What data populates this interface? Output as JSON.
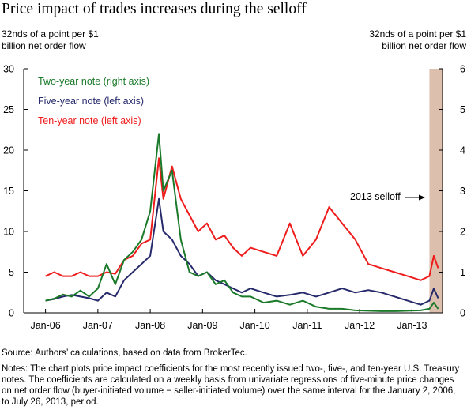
{
  "title": "Price impact of trades increases during the selloff",
  "left_axis_title": "32nds of a point per $1 billion net order flow",
  "right_axis_title": "32nds of a point per $1 billion net order flow",
  "source": "Source: Authors’ calculations, based on data from BrokerTec.",
  "notes": "Notes: The chart plots price impact coefficients for the most recently issued two-, five-, and ten-year U.S. Treasury notes. The coefficients are calculated on a weekly basis from univariate regressions of five-minute price changes on net order flow (buyer-initiated volume − seller-initiated volume) over the same interval for the January 2, 2006, to July 26, 2013, period.",
  "colors": {
    "two_year": "#1b7a2a",
    "five_year": "#262a6b",
    "ten_year": "#ee1c1c",
    "selloff_shade": "#ddbfae",
    "axis": "#000000"
  },
  "chart_data": {
    "type": "line",
    "x_tick_labels": [
      "Jan-06",
      "Jan-07",
      "Jan-08",
      "Jan-09",
      "Jan-10",
      "Jan-11",
      "Jan-12",
      "Jan-13"
    ],
    "x_range": [
      "2005-08",
      "2013-08"
    ],
    "left_axis": {
      "min": 0,
      "max": 30,
      "ticks": [
        0,
        5,
        10,
        15,
        20,
        25,
        30
      ]
    },
    "right_axis": {
      "min": 0,
      "max": 6,
      "ticks": [
        0,
        1,
        2,
        3,
        4,
        5,
        6
      ]
    },
    "grid": false,
    "legend_position": "top-left",
    "shaded_region": {
      "start": "2013-05",
      "end": "2013-08"
    },
    "annotation": {
      "text": "2013 selloff",
      "arrow": "right"
    },
    "series": [
      {
        "name": "Two-year note (right axis)",
        "axis": "right",
        "color": "#1b7a2a",
        "points": [
          [
            "2006-01",
            0.3
          ],
          [
            "2006-03",
            0.35
          ],
          [
            "2006-05",
            0.45
          ],
          [
            "2006-07",
            0.4
          ],
          [
            "2006-09",
            0.55
          ],
          [
            "2006-11",
            0.4
          ],
          [
            "2007-01",
            0.6
          ],
          [
            "2007-03",
            1.2
          ],
          [
            "2007-05",
            0.7
          ],
          [
            "2007-07",
            1.3
          ],
          [
            "2007-09",
            1.5
          ],
          [
            "2007-11",
            1.8
          ],
          [
            "2008-01",
            2.5
          ],
          [
            "2008-03",
            4.4
          ],
          [
            "2008-04",
            3.0
          ],
          [
            "2008-06",
            3.5
          ],
          [
            "2008-08",
            1.8
          ],
          [
            "2008-10",
            1.0
          ],
          [
            "2008-12",
            0.9
          ],
          [
            "2009-02",
            1.0
          ],
          [
            "2009-04",
            0.7
          ],
          [
            "2009-06",
            0.8
          ],
          [
            "2009-08",
            0.5
          ],
          [
            "2009-10",
            0.4
          ],
          [
            "2009-12",
            0.4
          ],
          [
            "2010-03",
            0.25
          ],
          [
            "2010-06",
            0.3
          ],
          [
            "2010-09",
            0.2
          ],
          [
            "2010-12",
            0.3
          ],
          [
            "2011-03",
            0.15
          ],
          [
            "2011-06",
            0.1
          ],
          [
            "2011-09",
            0.1
          ],
          [
            "2011-12",
            0.06
          ],
          [
            "2012-03",
            0.05
          ],
          [
            "2012-06",
            0.04
          ],
          [
            "2012-09",
            0.04
          ],
          [
            "2012-12",
            0.05
          ],
          [
            "2013-03",
            0.06
          ],
          [
            "2013-05",
            0.1
          ],
          [
            "2013-06",
            0.25
          ],
          [
            "2013-07",
            0.1
          ]
        ]
      },
      {
        "name": "Five-year note (left axis)",
        "axis": "left",
        "color": "#262a6b",
        "points": [
          [
            "2006-01",
            1.5
          ],
          [
            "2006-03",
            1.7
          ],
          [
            "2006-05",
            2.0
          ],
          [
            "2006-07",
            2.2
          ],
          [
            "2006-09",
            2.0
          ],
          [
            "2006-11",
            1.8
          ],
          [
            "2007-01",
            1.5
          ],
          [
            "2007-03",
            2.5
          ],
          [
            "2007-05",
            2.0
          ],
          [
            "2007-07",
            4.0
          ],
          [
            "2007-09",
            5.0
          ],
          [
            "2007-11",
            6.0
          ],
          [
            "2008-01",
            7.0
          ],
          [
            "2008-03",
            14.0
          ],
          [
            "2008-04",
            10.0
          ],
          [
            "2008-06",
            9.0
          ],
          [
            "2008-08",
            7.0
          ],
          [
            "2008-10",
            6.0
          ],
          [
            "2008-12",
            4.5
          ],
          [
            "2009-02",
            5.0
          ],
          [
            "2009-04",
            4.0
          ],
          [
            "2009-06",
            3.5
          ],
          [
            "2009-08",
            3.0
          ],
          [
            "2009-10",
            2.5
          ],
          [
            "2009-12",
            3.0
          ],
          [
            "2010-03",
            2.5
          ],
          [
            "2010-06",
            2.0
          ],
          [
            "2010-09",
            2.2
          ],
          [
            "2010-12",
            2.5
          ],
          [
            "2011-03",
            2.0
          ],
          [
            "2011-06",
            2.5
          ],
          [
            "2011-09",
            3.0
          ],
          [
            "2011-12",
            2.5
          ],
          [
            "2012-03",
            2.8
          ],
          [
            "2012-06",
            2.5
          ],
          [
            "2012-09",
            2.0
          ],
          [
            "2012-12",
            1.5
          ],
          [
            "2013-03",
            1.0
          ],
          [
            "2013-05",
            1.5
          ],
          [
            "2013-06",
            3.0
          ],
          [
            "2013-07",
            1.8
          ]
        ]
      },
      {
        "name": "Ten-year note (left axis)",
        "axis": "left",
        "color": "#ee1c1c",
        "points": [
          [
            "2006-01",
            4.5
          ],
          [
            "2006-03",
            5.0
          ],
          [
            "2006-05",
            4.5
          ],
          [
            "2006-07",
            4.5
          ],
          [
            "2006-09",
            5.0
          ],
          [
            "2006-11",
            4.5
          ],
          [
            "2007-01",
            4.5
          ],
          [
            "2007-03",
            5.0
          ],
          [
            "2007-05",
            4.8
          ],
          [
            "2007-07",
            6.5
          ],
          [
            "2007-09",
            7.0
          ],
          [
            "2007-11",
            8.5
          ],
          [
            "2008-01",
            9.0
          ],
          [
            "2008-03",
            19.0
          ],
          [
            "2008-04",
            14.0
          ],
          [
            "2008-06",
            18.0
          ],
          [
            "2008-08",
            14.0
          ],
          [
            "2008-10",
            12.0
          ],
          [
            "2008-12",
            10.0
          ],
          [
            "2009-02",
            11.0
          ],
          [
            "2009-04",
            9.0
          ],
          [
            "2009-06",
            9.5
          ],
          [
            "2009-08",
            8.0
          ],
          [
            "2009-10",
            7.0
          ],
          [
            "2009-12",
            8.0
          ],
          [
            "2010-03",
            7.5
          ],
          [
            "2010-06",
            7.0
          ],
          [
            "2010-09",
            11.0
          ],
          [
            "2010-12",
            7.0
          ],
          [
            "2011-03",
            9.0
          ],
          [
            "2011-06",
            13.0
          ],
          [
            "2011-09",
            11.0
          ],
          [
            "2011-12",
            9.0
          ],
          [
            "2012-03",
            6.0
          ],
          [
            "2012-06",
            5.5
          ],
          [
            "2012-09",
            5.0
          ],
          [
            "2012-12",
            4.5
          ],
          [
            "2013-03",
            4.0
          ],
          [
            "2013-05",
            4.5
          ],
          [
            "2013-06",
            7.0
          ],
          [
            "2013-07",
            5.5
          ]
        ]
      }
    ]
  }
}
